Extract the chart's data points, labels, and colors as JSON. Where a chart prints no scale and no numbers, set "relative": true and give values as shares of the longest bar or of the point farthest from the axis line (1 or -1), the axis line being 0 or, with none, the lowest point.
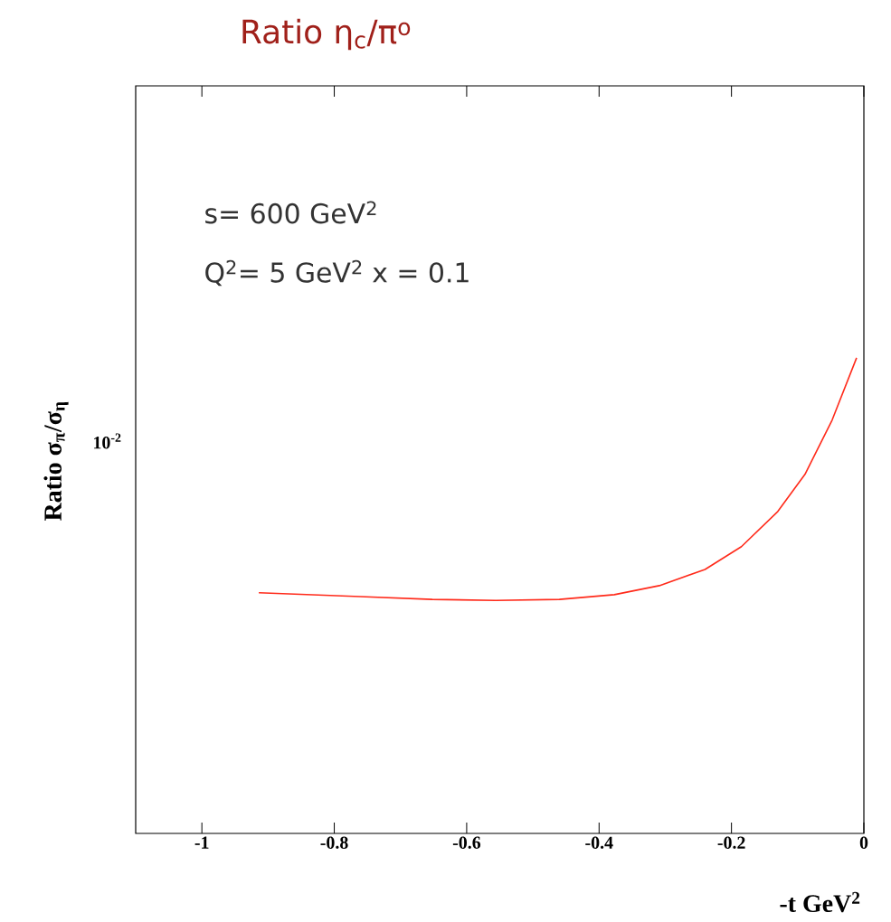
{
  "chart_data": {
    "type": "line",
    "title": "Ratio η$_{c}$/π$^{o}$",
    "ylabel": "Ratio σ$_{π}$/σ$_{η}$",
    "xlabel": "-t GeV$^{2}$",
    "annotations": [
      "s= 600 GeV$^{2}$",
      "Q$^{2}$= 5 GeV$^{2}$  x = 0.1",
      "10$^{-2}$"
    ],
    "relative": true,
    "x": [
      -0.914,
      -0.761,
      -0.652,
      -0.556,
      -0.46,
      -0.377,
      -0.309,
      -0.24,
      -0.185,
      -0.13,
      -0.089,
      -0.048,
      -0.011
    ],
    "series": [
      {
        "color": "#ff2a1a",
        "values": [
          0.506,
          0.498,
          0.492,
          0.49,
          0.492,
          0.502,
          0.521,
          0.555,
          0.603,
          0.677,
          0.755,
          0.869,
          1.0
        ]
      }
    ],
    "xlim": [
      -1.1,
      0
    ],
    "xticks": [
      -1,
      -0.8,
      -0.6,
      -0.4,
      -0.2,
      0
    ],
    "marker": "none",
    "line_style": "solid"
  }
}
